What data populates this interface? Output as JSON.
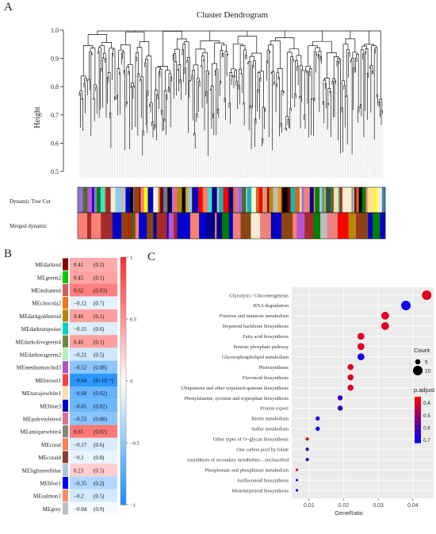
{
  "panels": {
    "a": "A",
    "b": "B",
    "c": "C"
  },
  "chart_data": [
    {
      "type": "dendrogram",
      "title": "Cluster Dendrogram",
      "ylabel": "Height",
      "ylim": [
        0.5,
        1.0
      ],
      "yticks": [
        "0.5",
        "0.6",
        "0.7",
        "0.8",
        "0.9",
        "1.0"
      ],
      "row_labels": [
        "Dynamic Tree Cut",
        "Merged dynamic"
      ],
      "palette": [
        "#8b0000",
        "#f5f5dc",
        "#ff0000",
        "#008000",
        "#d2691e",
        "#ffff00",
        "#0000cd",
        "#b8860b",
        "#ff69b4",
        "#40e0d0",
        "#556b2f",
        "#2f4f4f",
        "#ba55d3",
        "#a52a2a",
        "#ffdead",
        "#db7093",
        "#faebd7",
        "#f08080",
        "#8b4513",
        "#4682b4",
        "#00008b",
        "#fa8072",
        "#bebebe",
        "#87ceeb",
        "#9370db",
        "#20b2aa",
        "#daa520",
        "#000000"
      ],
      "merged_palette": [
        "#0000cd",
        "#8b4513",
        "#ff0000",
        "#b8860b",
        "#faebd7",
        "#556b2f",
        "#0000cd",
        "#bebebe",
        "#ba55d3",
        "#a52a2a",
        "#f08080",
        "#00008b",
        "#008000",
        "#fa8072"
      ]
    },
    {
      "type": "heatmap",
      "rows": [
        {
          "name": "MEdarkred",
          "color": "#8b0000",
          "r": 0.41,
          "label": "0.41",
          "p": "(0.2)"
        },
        {
          "name": "MEgreen2",
          "color": "#00c800",
          "r": 0.45,
          "label": "0.45",
          "p": "(0.1)"
        },
        {
          "name": "MEindianred",
          "color": "#cd5c5c",
          "r": 0.62,
          "label": "0.62",
          "p": "(0.03)"
        },
        {
          "name": "MEchocola2",
          "color": "#ee7621",
          "r": -0.12,
          "label": "−0.12",
          "p": "(0.7)"
        },
        {
          "name": "MEdarkgoldenrod",
          "color": "#b8860b",
          "r": 0.46,
          "label": "0.46",
          "p": "(0.1)"
        },
        {
          "name": "MEdarkturquoise",
          "color": "#00ced1",
          "r": -0.15,
          "label": "−0.15",
          "p": "(0.6)"
        },
        {
          "name": "MEdarkolivegreen4",
          "color": "#6e8b3d",
          "r": 0.46,
          "label": "0.46",
          "p": "(0.1)"
        },
        {
          "name": "MEdarkseagreen2",
          "color": "#b4eeb4",
          "r": -0.21,
          "label": "−0.21",
          "p": "(0.5)"
        },
        {
          "name": "MEmediumorchid3",
          "color": "#b452cd",
          "r": -0.52,
          "label": "−0.52",
          "p": "(0.08)"
        },
        {
          "name": "MEbrown1",
          "color": "#ff4040",
          "r": -0.94,
          "label": "−0.94",
          "p": "(8×10⁻⁶)"
        },
        {
          "name": "MEnavajowhite1",
          "color": "#ffdead",
          "r": -0.68,
          "label": "−0.68",
          "p": "(0.02)"
        },
        {
          "name": "MEblue3",
          "color": "#0000cd",
          "r": -0.65,
          "label": "−0.65",
          "p": "(0.02)"
        },
        {
          "name": "MEpalevioletred",
          "color": "#db7093",
          "r": -0.53,
          "label": "−0.53",
          "p": "(0.08)"
        },
        {
          "name": "MEantiquewhite4",
          "color": "#8b8378",
          "r": 0.65,
          "label": "0.65",
          "p": "(0.02)"
        },
        {
          "name": "MEcoral",
          "color": "#ff7f50",
          "r": -0.17,
          "label": "−0.17",
          "p": "(0.6)"
        },
        {
          "name": "MEcoral4",
          "color": "#8b3e2f",
          "r": -0.1,
          "label": "−0.1",
          "p": "(0.8)"
        },
        {
          "name": "MElightsteelblue",
          "color": "#b0c4de",
          "r": 0.23,
          "label": "0.23",
          "p": "(0.5)"
        },
        {
          "name": "MEblue1",
          "color": "#0000ff",
          "r": -0.35,
          "label": "−0.35",
          "p": "(0.2)"
        },
        {
          "name": "MEsalmon1",
          "color": "#ff8c69",
          "r": -0.2,
          "label": "−0.2",
          "p": "(0.5)"
        },
        {
          "name": "MEgrey",
          "color": "#bebebe",
          "r": -0.04,
          "label": "−0.04",
          "p": "(0.9)"
        }
      ],
      "scale": {
        "min": -1,
        "max": 1,
        "ticks": [
          "1",
          "0.5",
          "0",
          "−0.5",
          "−1"
        ],
        "low_color": "#1e90ff",
        "mid_color": "#ffffff",
        "high_color": "#ff3030"
      }
    },
    {
      "type": "scatter",
      "xlabel": "GeneRatio",
      "xlim": [
        0.005,
        0.046
      ],
      "xticks": [
        {
          "v": 0.01,
          "label": "0.01"
        },
        {
          "v": 0.02,
          "label": "0.02"
        },
        {
          "v": 0.03,
          "label": "0.03"
        },
        {
          "v": 0.04,
          "label": "0.04"
        }
      ],
      "points": [
        {
          "term": "Glycolysis / Gluconeogenesis",
          "x": 0.044,
          "count": 10,
          "padj": 0.4
        },
        {
          "term": "RNA degradation",
          "x": 0.038,
          "count": 10,
          "padj": 0.7
        },
        {
          "term": "Fructose and mannose metabolism",
          "x": 0.032,
          "count": 8,
          "padj": 0.4
        },
        {
          "term": "Terpenoid backbone biosynthesis",
          "x": 0.032,
          "count": 8,
          "padj": 0.4
        },
        {
          "term": "Fatty acid biosynthesis",
          "x": 0.025,
          "count": 7,
          "padj": 0.4
        },
        {
          "term": "Pentose phosphate pathway",
          "x": 0.025,
          "count": 7,
          "padj": 0.4
        },
        {
          "term": "Glycerophospholipid metabolism",
          "x": 0.025,
          "count": 7,
          "padj": 0.7
        },
        {
          "term": "Photosynthesis",
          "x": 0.022,
          "count": 6,
          "padj": 0.4
        },
        {
          "term": "Flavonoid biosynthesis",
          "x": 0.022,
          "count": 6,
          "padj": 0.4
        },
        {
          "term": "Ubiquinone and other terpenoid-quinone biosynthesis",
          "x": 0.022,
          "count": 6,
          "padj": 0.4
        },
        {
          "term": "Phenylalanine, tyrosine and tryptophan biosynthesis",
          "x": 0.019,
          "count": 5,
          "padj": 0.63
        },
        {
          "term": "Protein export",
          "x": 0.019,
          "count": 5,
          "padj": 0.63
        },
        {
          "term": "Biotin metabolism",
          "x": 0.0125,
          "count": 4,
          "padj": 0.65
        },
        {
          "term": "Sulfur metabolism",
          "x": 0.0125,
          "count": 4,
          "padj": 0.7
        },
        {
          "term": "Other types of O−glycan biosynthesis",
          "x": 0.0095,
          "count": 3,
          "padj": 0.4
        },
        {
          "term": "One carbon pool by folate",
          "x": 0.0095,
          "count": 3,
          "padj": 0.63
        },
        {
          "term": "iosynthesis of secondary metabolites - unclassified",
          "x": 0.0095,
          "count": 3,
          "padj": 0.63
        },
        {
          "term": "Phosphonate and phosphinate metabolism",
          "x": 0.0065,
          "count": 2,
          "padj": 0.4
        },
        {
          "term": "Isoflavonoid biosynthesis",
          "x": 0.0065,
          "count": 2,
          "padj": 0.63
        },
        {
          "term": "Monoterpenoid biosynthesis",
          "x": 0.0065,
          "count": 2,
          "padj": 0.7
        }
      ],
      "legend_count": {
        "title": "Count",
        "items": [
          {
            "count": 5,
            "label": "5"
          },
          {
            "count": 10,
            "label": "10"
          }
        ]
      },
      "legend_padj": {
        "title": "p.adjust",
        "min": 0.35,
        "max": 0.72,
        "ticks": [
          {
            "v": 0.4,
            "label": "0.4"
          },
          {
            "v": 0.5,
            "label": "0.5"
          },
          {
            "v": 0.6,
            "label": "0.6"
          },
          {
            "v": 0.7,
            "label": "0.7"
          }
        ],
        "low_color": "#ff0000",
        "high_color": "#0000ff"
      }
    }
  ]
}
